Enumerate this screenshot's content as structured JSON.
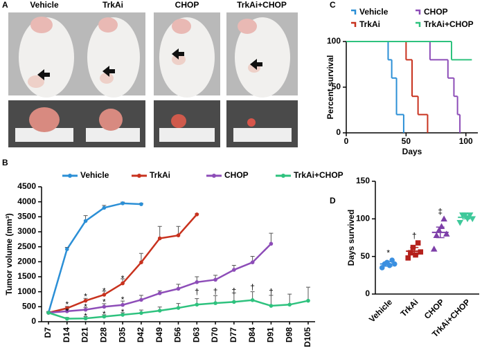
{
  "panels": {
    "letters": [
      "A",
      "B",
      "C",
      "D"
    ],
    "photo_labels": [
      "Vehicle",
      "TrkAi",
      "CHOP",
      "TrkAi+CHOP"
    ]
  },
  "chart_data": [
    {
      "type": "line",
      "y_label": "Tumor volume (mm³)",
      "categories": [
        "D7",
        "D14",
        "D21",
        "D28",
        "D35",
        "D42",
        "D49",
        "D56",
        "D63",
        "D70",
        "D77",
        "D84",
        "D91",
        "D98",
        "D105"
      ],
      "ylim": [
        0,
        4500
      ],
      "yticks": [
        0,
        500,
        1000,
        1500,
        2000,
        2500,
        3000,
        3500,
        4000,
        4500
      ],
      "series": [
        {
          "name": "Vehicle",
          "color": "#2b8fd6",
          "values": [
            300,
            2420,
            3360,
            3800,
            3950,
            3920,
            null,
            null,
            null,
            null,
            null,
            null,
            null,
            null,
            null
          ],
          "errors": [
            40,
            60,
            180,
            80,
            40,
            30,
            null,
            null,
            null,
            null,
            null,
            null,
            null,
            null,
            null
          ]
        },
        {
          "name": "TrkAi",
          "color": "#c8321e",
          "values": [
            300,
            450,
            700,
            900,
            1280,
            1980,
            2780,
            2880,
            3580,
            null,
            null,
            null,
            null,
            null,
            null
          ],
          "errors": [
            30,
            60,
            80,
            120,
            150,
            300,
            400,
            300,
            20,
            null,
            null,
            null,
            null,
            null,
            null
          ]
        },
        {
          "name": "CHOP",
          "color": "#8d4db8",
          "values": [
            300,
            350,
            400,
            500,
            560,
            730,
            950,
            1100,
            1320,
            1400,
            1730,
            1980,
            2600,
            null,
            null
          ],
          "errors": [
            30,
            60,
            80,
            100,
            130,
            150,
            80,
            150,
            180,
            150,
            150,
            200,
            350,
            null,
            null
          ]
        },
        {
          "name": "TrkAi+CHOP",
          "color": "#2ec27e",
          "values": [
            300,
            100,
            110,
            170,
            230,
            290,
            370,
            460,
            570,
            620,
            660,
            720,
            530,
            570,
            700
          ],
          "errors": [
            20,
            40,
            60,
            60,
            70,
            100,
            120,
            150,
            200,
            250,
            300,
            280,
            350,
            350,
            450
          ]
        }
      ],
      "annotations": [
        {
          "text": "*",
          "x": "D14",
          "y": 560
        },
        {
          "text": "*",
          "x": "D21",
          "y": 820
        },
        {
          "text": "*",
          "x": "D28",
          "y": 1010
        },
        {
          "text": "*",
          "x": "D35",
          "y": 1420
        },
        {
          "text": "*",
          "x": "D14",
          "y": 330
        },
        {
          "text": "*",
          "x": "D21",
          "y": 480
        },
        {
          "text": "*",
          "x": "D28",
          "y": 640
        },
        {
          "text": "*",
          "x": "D35",
          "y": 720
        },
        {
          "text": "*",
          "x": "D21",
          "y": 170
        },
        {
          "text": "*",
          "x": "D28",
          "y": 240
        },
        {
          "text": "*",
          "x": "D35",
          "y": 300
        },
        {
          "text": "†",
          "x": "D63",
          "y": 980
        },
        {
          "text": "†",
          "x": "D70",
          "y": 1000
        },
        {
          "text": "†",
          "x": "D77",
          "y": 1010
        },
        {
          "text": "†",
          "x": "D84",
          "y": 1140
        },
        {
          "text": "†",
          "x": "D91",
          "y": 980
        }
      ]
    },
    {
      "type": "step",
      "x_label": "Days",
      "y_label": "Percent survival",
      "xlim": [
        0,
        110
      ],
      "xticks": [
        0,
        50,
        100
      ],
      "ylim": [
        0,
        100
      ],
      "yticks": [
        0,
        50,
        100
      ],
      "series": [
        {
          "name": "Vehicle",
          "color": "#2b8fd6",
          "x": [
            0,
            35,
            38,
            42,
            48
          ],
          "values": [
            100,
            80,
            60,
            20,
            0
          ]
        },
        {
          "name": "CHOP",
          "color": "#8d4db8",
          "x": [
            0,
            70,
            85,
            90,
            93,
            95
          ],
          "values": [
            100,
            80,
            60,
            40,
            20,
            0
          ]
        },
        {
          "name": "TrkAi",
          "color": "#c8321e",
          "x": [
            0,
            50,
            55,
            60,
            68
          ],
          "values": [
            100,
            80,
            40,
            20,
            0
          ]
        },
        {
          "name": "TrkAi+CHOP",
          "color": "#2ec27e",
          "x": [
            0,
            88,
            105
          ],
          "values": [
            100,
            80,
            80
          ]
        }
      ]
    },
    {
      "type": "dot",
      "y_label": "Days survived",
      "categories": [
        "Vehicle",
        "TrkAi",
        "CHOP",
        "TrkAi+CHOP"
      ],
      "colors": [
        "#3a8fe0",
        "#b5211c",
        "#7d3fa8",
        "#3ec89a"
      ],
      "markers": [
        "circle",
        "square",
        "triangle-up",
        "triangle-down"
      ],
      "ylim": [
        0,
        150
      ],
      "yticks": [
        0,
        50,
        100,
        150
      ],
      "points": [
        [
          35,
          40,
          42,
          38,
          45,
          40
        ],
        [
          48,
          55,
          62,
          52,
          68,
          56
        ],
        [
          60,
          78,
          85,
          90,
          100,
          80
        ],
        [
          95,
          105,
          105,
          100,
          105,
          100
        ]
      ],
      "means": [
        40,
        57,
        82,
        102
      ],
      "sems": [
        3,
        5,
        7,
        2
      ],
      "annotations": [
        "*",
        "†",
        "‡",
        null
      ]
    }
  ]
}
